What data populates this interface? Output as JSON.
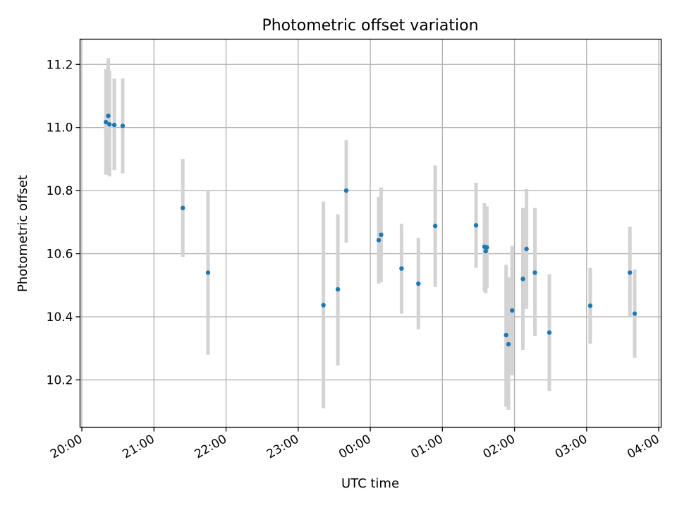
{
  "chart_data": {
    "type": "scatter",
    "title": "Photometric offset variation",
    "xlabel": "UTC time",
    "ylabel": "Photometric offset",
    "xlim": [
      "2000-01-01T19:58:30",
      "2000-01-02T04:02:00"
    ],
    "ylim": [
      10.05,
      11.28
    ],
    "grid": true,
    "x_ticks": [
      {
        "t": "2000-01-01T20:00",
        "label": "20:00"
      },
      {
        "t": "2000-01-01T21:00",
        "label": "21:00"
      },
      {
        "t": "2000-01-01T22:00",
        "label": "22:00"
      },
      {
        "t": "2000-01-01T23:00",
        "label": "23:00"
      },
      {
        "t": "2000-01-02T00:00",
        "label": "00:00"
      },
      {
        "t": "2000-01-02T01:00",
        "label": "01:00"
      },
      {
        "t": "2000-01-02T02:00",
        "label": "02:00"
      },
      {
        "t": "2000-01-02T03:00",
        "label": "03:00"
      },
      {
        "t": "2000-01-02T04:00",
        "label": "04:00"
      }
    ],
    "y_ticks": [
      "10.2",
      "10.4",
      "10.6",
      "10.8",
      "11.0",
      "11.2"
    ],
    "colors": {
      "point": "#1f77b4",
      "errorbar": "#d3d3d3",
      "grid": "#b0b0b0"
    },
    "points": [
      {
        "x": "2000-01-01T20:20",
        "y": 11.017,
        "lo": 10.85,
        "hi": 11.185
      },
      {
        "x": "2000-01-01T20:22",
        "y": 11.037,
        "lo": 10.855,
        "hi": 11.22
      },
      {
        "x": "2000-01-01T20:23",
        "y": 11.01,
        "lo": 10.845,
        "hi": 11.18
      },
      {
        "x": "2000-01-01T20:27",
        "y": 11.008,
        "lo": 10.865,
        "hi": 11.155
      },
      {
        "x": "2000-01-01T20:34",
        "y": 11.005,
        "lo": 10.855,
        "hi": 11.155
      },
      {
        "x": "2000-01-01T21:24",
        "y": 10.745,
        "lo": 10.59,
        "hi": 10.9
      },
      {
        "x": "2000-01-01T21:45",
        "y": 10.54,
        "lo": 10.28,
        "hi": 10.8
      },
      {
        "x": "2000-01-01T23:21",
        "y": 10.437,
        "lo": 10.11,
        "hi": 10.765
      },
      {
        "x": "2000-01-01T23:33",
        "y": 10.487,
        "lo": 10.245,
        "hi": 10.725
      },
      {
        "x": "2000-01-01T23:40",
        "y": 10.8,
        "lo": 10.635,
        "hi": 10.96
      },
      {
        "x": "2000-01-02T00:07",
        "y": 10.643,
        "lo": 10.505,
        "hi": 10.78
      },
      {
        "x": "2000-01-02T00:09",
        "y": 10.66,
        "lo": 10.51,
        "hi": 10.81
      },
      {
        "x": "2000-01-02T00:26",
        "y": 10.553,
        "lo": 10.41,
        "hi": 10.695
      },
      {
        "x": "2000-01-02T00:40",
        "y": 10.505,
        "lo": 10.36,
        "hi": 10.65
      },
      {
        "x": "2000-01-02T00:54",
        "y": 10.688,
        "lo": 10.495,
        "hi": 10.88
      },
      {
        "x": "2000-01-02T01:28",
        "y": 10.69,
        "lo": 10.555,
        "hi": 10.825
      },
      {
        "x": "2000-01-02T01:35",
        "y": 10.622,
        "lo": 10.48,
        "hi": 10.76
      },
      {
        "x": "2000-01-02T01:36",
        "y": 10.608,
        "lo": 10.475,
        "hi": 10.75
      },
      {
        "x": "2000-01-02T01:37",
        "y": 10.62,
        "lo": 10.49,
        "hi": 10.75
      },
      {
        "x": "2000-01-02T01:53",
        "y": 10.342,
        "lo": 10.115,
        "hi": 10.565
      },
      {
        "x": "2000-01-02T01:55",
        "y": 10.313,
        "lo": 10.105,
        "hi": 10.525
      },
      {
        "x": "2000-01-02T01:58",
        "y": 10.42,
        "lo": 10.215,
        "hi": 10.625
      },
      {
        "x": "2000-01-02T02:07",
        "y": 10.52,
        "lo": 10.295,
        "hi": 10.745
      },
      {
        "x": "2000-01-02T02:10",
        "y": 10.615,
        "lo": 10.425,
        "hi": 10.805
      },
      {
        "x": "2000-01-02T02:17",
        "y": 10.54,
        "lo": 10.34,
        "hi": 10.745
      },
      {
        "x": "2000-01-02T02:29",
        "y": 10.35,
        "lo": 10.165,
        "hi": 10.535
      },
      {
        "x": "2000-01-02T03:03",
        "y": 10.435,
        "lo": 10.315,
        "hi": 10.555
      },
      {
        "x": "2000-01-02T03:36",
        "y": 10.54,
        "lo": 10.4,
        "hi": 10.685
      },
      {
        "x": "2000-01-02T03:40",
        "y": 10.41,
        "lo": 10.27,
        "hi": 10.55
      }
    ]
  }
}
